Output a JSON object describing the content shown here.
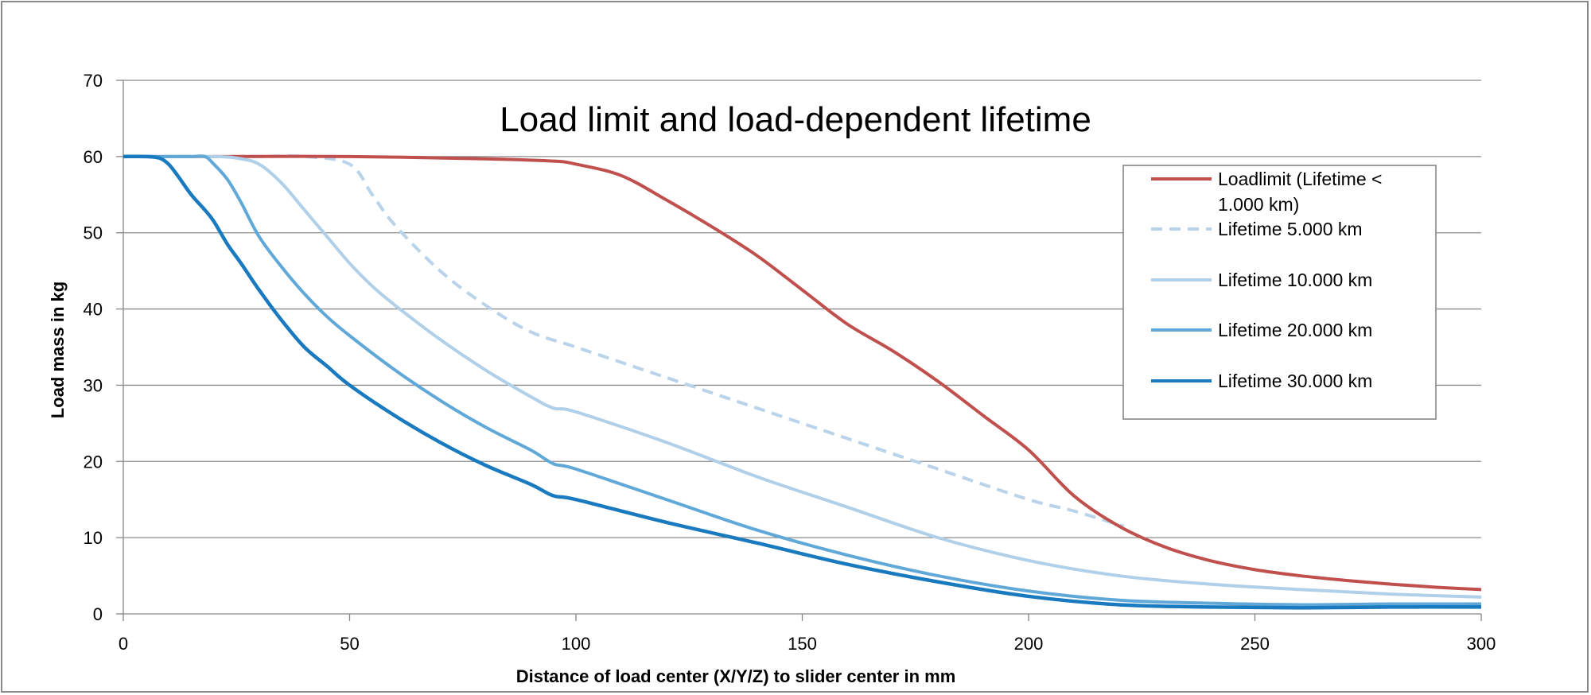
{
  "chart_data": {
    "type": "line",
    "title": "Load limit and load-dependent lifetime",
    "xlabel": "Distance of load center (X/Y/Z) to  slider center in mm",
    "ylabel": "Load mass in kg",
    "xlim": [
      0,
      300
    ],
    "ylim": [
      0,
      70
    ],
    "xticks": [
      "0",
      "50",
      "100",
      "150",
      "200",
      "250",
      "300"
    ],
    "yticks": [
      "0",
      "10",
      "20",
      "30",
      "40",
      "50",
      "60",
      "70"
    ],
    "grid": "horizontal",
    "legend_position": "right",
    "legend": [
      {
        "line1": "Loadlimit (Lifetime <",
        "line2": "1.000 km)"
      },
      {
        "line1": "Lifetime 5.000 km",
        "line2": ""
      },
      {
        "line1": "Lifetime 10.000 km",
        "line2": ""
      },
      {
        "line1": "Lifetime 20.000 km",
        "line2": ""
      },
      {
        "line1": "Lifetime 30.000 km",
        "line2": ""
      }
    ],
    "series": [
      {
        "name": "Loadlimit (Lifetime < 1.000 km)",
        "color": "#c0504d",
        "dashed": false,
        "x": [
          0,
          20,
          50,
          80,
          95,
          100,
          110,
          120,
          130,
          140,
          150,
          160,
          170,
          180,
          190,
          200,
          210,
          220,
          230,
          240,
          250,
          260,
          270,
          280,
          290,
          300
        ],
        "y": [
          60,
          60,
          60,
          59.7,
          59.4,
          59,
          57.5,
          54.3,
          50.8,
          47,
          42.5,
          38,
          34.5,
          30.5,
          26,
          21.5,
          15.5,
          11.5,
          8.8,
          7,
          5.8,
          5,
          4.4,
          3.9,
          3.5,
          3.2
        ]
      },
      {
        "name": "Lifetime 5.000 km",
        "color": "#b8d3ea",
        "dashed": true,
        "x": [
          0,
          20,
          30,
          40,
          50,
          55,
          60,
          70,
          80,
          90,
          100,
          120,
          140,
          160,
          180,
          200,
          210,
          221
        ],
        "y": [
          60,
          60,
          60,
          60,
          59,
          55,
          51,
          45,
          40.5,
          37,
          35,
          31,
          27,
          23,
          19,
          15,
          13.5,
          11.5
        ]
      },
      {
        "name": "Lifetime 10.000 km",
        "color": "#b0cfe8",
        "dashed": false,
        "x": [
          0,
          10,
          20,
          25,
          30,
          35,
          40,
          45,
          50,
          55,
          60,
          70,
          80,
          90,
          95,
          100,
          120,
          140,
          160,
          180,
          200,
          220,
          240,
          260,
          280,
          300
        ],
        "y": [
          60,
          60,
          60,
          59.8,
          59,
          56.5,
          53,
          49.5,
          46,
          43,
          40.5,
          36,
          32,
          28.5,
          27,
          26.5,
          22.5,
          18,
          14,
          10,
          7,
          5,
          3.9,
          3.2,
          2.6,
          2.2
        ]
      },
      {
        "name": "Lifetime 20.000 km",
        "color": "#5fa8d8",
        "dashed": false,
        "x": [
          0,
          10,
          15,
          18,
          20,
          23,
          26,
          30,
          35,
          40,
          45,
          50,
          60,
          70,
          80,
          90,
          95,
          100,
          120,
          140,
          160,
          180,
          200,
          220,
          240,
          260,
          280,
          300
        ],
        "y": [
          60,
          60,
          60,
          60,
          59,
          57,
          54,
          49.5,
          45.5,
          42,
          39,
          36.5,
          32,
          28,
          24.5,
          21.5,
          19.7,
          19,
          15,
          11,
          7.7,
          5,
          3,
          1.8,
          1.4,
          1.2,
          1.3,
          1.3
        ]
      },
      {
        "name": "Lifetime 30.000 km",
        "color": "#1a7abf",
        "dashed": false,
        "x": [
          0,
          5,
          8,
          10,
          12,
          15,
          18,
          20,
          23,
          26,
          30,
          35,
          40,
          45,
          50,
          60,
          70,
          80,
          90,
          95,
          100,
          120,
          140,
          160,
          180,
          200,
          220,
          240,
          260,
          280,
          300
        ],
        "y": [
          60,
          60,
          59.8,
          59,
          57.5,
          55,
          53,
          51.5,
          48.5,
          46,
          42.5,
          38.5,
          35,
          32.5,
          30,
          26,
          22.5,
          19.5,
          17,
          15.5,
          15,
          12,
          9.3,
          6.5,
          4.2,
          2.3,
          1.2,
          0.9,
          0.8,
          0.9,
          0.9
        ]
      }
    ]
  }
}
